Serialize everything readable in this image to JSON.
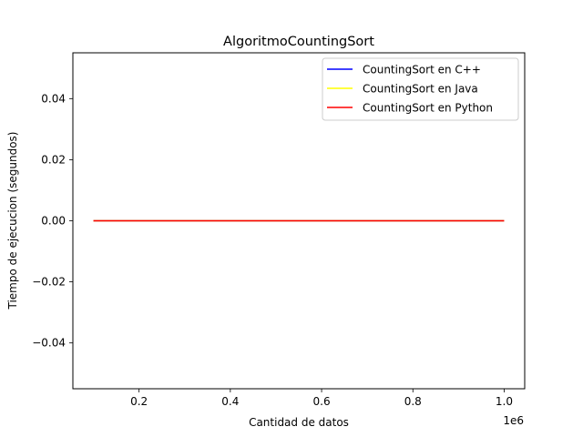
{
  "chart_data": {
    "type": "line",
    "title": "AlgoritmoCountingSort",
    "xlabel": "Cantidad de datos",
    "ylabel": "Tiempo de ejecucion (segundos)",
    "x_offset_label": "1e6",
    "xlim": [
      55000,
      1045000
    ],
    "ylim": [
      -0.055,
      0.055
    ],
    "grid": false,
    "legend_position": "upper right",
    "x_ticks": [
      {
        "value": 200000,
        "label": "0.2"
      },
      {
        "value": 400000,
        "label": "0.4"
      },
      {
        "value": 600000,
        "label": "0.6"
      },
      {
        "value": 800000,
        "label": "0.8"
      },
      {
        "value": 1000000,
        "label": "1.0"
      }
    ],
    "y_ticks": [
      {
        "value": -0.04,
        "label": "−0.04"
      },
      {
        "value": -0.02,
        "label": "−0.02"
      },
      {
        "value": 0.0,
        "label": "0.00"
      },
      {
        "value": 0.02,
        "label": "0.02"
      },
      {
        "value": 0.04,
        "label": "0.04"
      }
    ],
    "x": [
      100000,
      1000000
    ],
    "series": [
      {
        "name": "CountingSort en C++",
        "color": "#0000ff",
        "values": [
          0,
          0
        ]
      },
      {
        "name": "CountingSort en Java",
        "color": "#ffff00",
        "values": [
          0,
          0
        ]
      },
      {
        "name": "CountingSort en Python",
        "color": "#ff0000",
        "values": [
          0,
          0
        ]
      }
    ]
  }
}
